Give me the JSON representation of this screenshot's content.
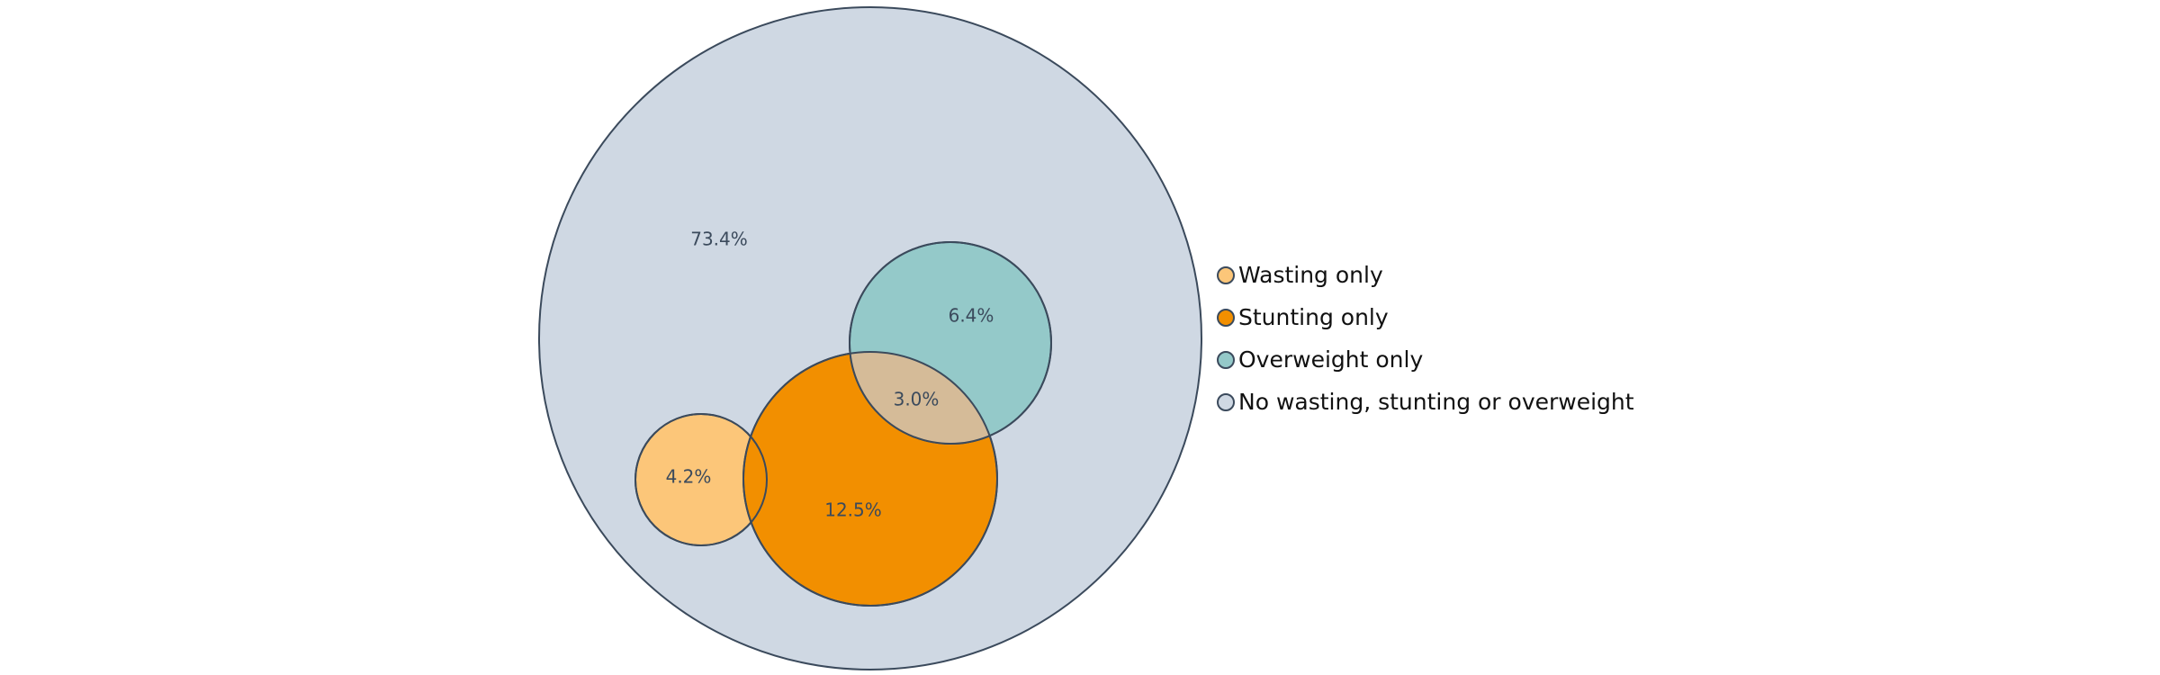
{
  "chart_data": {
    "type": "venn",
    "title": "",
    "stroke_color": "#3b4a5c",
    "sets": [
      {
        "id": "none",
        "name": "No wasting, stunting or overweight",
        "value": 73.4,
        "value_label": "73.4%",
        "color": "#cfd8e3"
      },
      {
        "id": "wasting",
        "name": "Wasting only",
        "value": 4.2,
        "value_label": "4.2%",
        "color": "#fcc679"
      },
      {
        "id": "stunting",
        "name": "Stunting only",
        "value": 12.5,
        "value_label": "12.5%",
        "color": "#f28f00"
      },
      {
        "id": "overweight",
        "name": "Overweight only",
        "value": 6.4,
        "value_label": "6.4%",
        "color": "#94c9c9"
      }
    ],
    "overlaps": [
      {
        "sets": [
          "stunting",
          "overweight"
        ],
        "value": 3.0,
        "value_label": "3.0%",
        "color": "#d5bb98"
      }
    ],
    "legend": {
      "placement": "right",
      "entries": [
        {
          "set": "wasting",
          "label": "Wasting only",
          "color": "#fcc679"
        },
        {
          "set": "stunting",
          "label": "Stunting only",
          "color": "#f28f00"
        },
        {
          "set": "overweight",
          "label": "Overweight only",
          "color": "#94c9c9"
        },
        {
          "set": "none",
          "label": "No wasting, stunting or overweight",
          "color": "#cfd8e3"
        }
      ]
    }
  }
}
